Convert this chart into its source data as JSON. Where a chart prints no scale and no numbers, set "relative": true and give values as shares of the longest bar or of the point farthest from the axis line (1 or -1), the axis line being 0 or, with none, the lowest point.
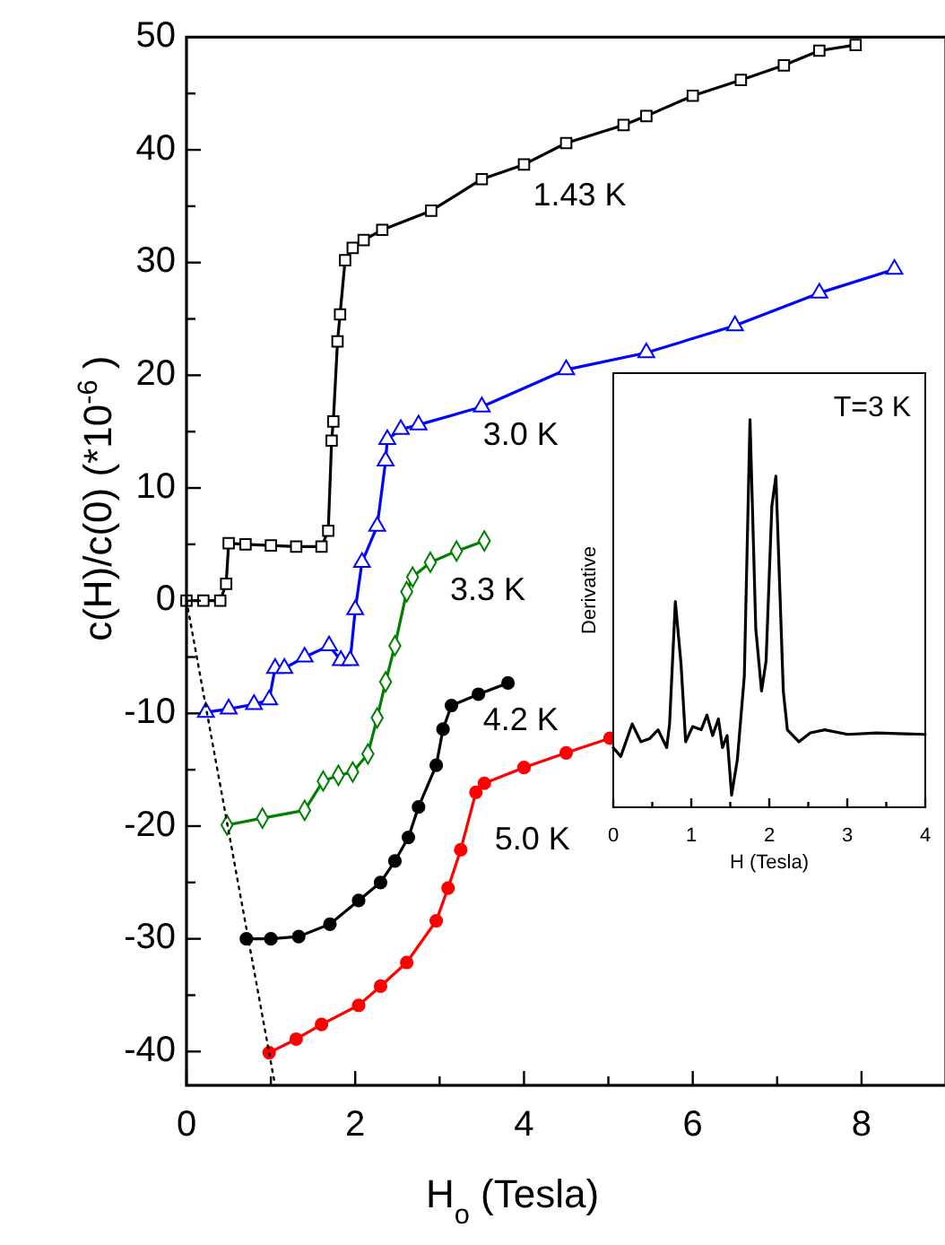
{
  "chart_data": [
    {
      "type": "line",
      "xlabel": "H$_{o}$ (Tesla)",
      "ylabel": "c(H)/c(0)  (*10$^{-6}$)",
      "xlim": [
        0,
        9
      ],
      "ylim": [
        -43,
        50
      ],
      "xticks": [
        0,
        {
          "value": 1,
          "label": null
        },
        2,
        {
          "value": 3,
          "label": null
        },
        4,
        {
          "value": 5,
          "label": null
        },
        6,
        {
          "value": 7,
          "label": null
        },
        8
      ],
      "yticks": [
        -40,
        {
          "value": -35,
          "label": null
        },
        -30,
        {
          "value": -25,
          "label": null
        },
        -20,
        {
          "value": -15,
          "label": null
        },
        -10,
        {
          "value": -5,
          "label": null
        },
        0,
        {
          "value": 5,
          "label": null
        },
        10,
        {
          "value": 15,
          "label": null
        },
        20,
        {
          "value": 25,
          "label": null
        },
        30,
        {
          "value": 35,
          "label": null
        },
        40,
        {
          "value": 45,
          "label": null
        },
        50
      ],
      "series": [
        {
          "name": "1.43 K",
          "color": "#000000",
          "marker": "square",
          "x": [
            0,
            0.2,
            0.4,
            0.47,
            0.5,
            0.7,
            1.0,
            1.3,
            1.6,
            1.68,
            1.72,
            1.74,
            1.79,
            1.82,
            1.88,
            1.97,
            2.1,
            2.32,
            2.9,
            3.5,
            4.0,
            4.5,
            5.18,
            5.45,
            6.0,
            6.57,
            7.08,
            7.5,
            7.93
          ],
          "values": [
            0,
            0,
            0,
            1.5,
            5.1,
            5.0,
            4.9,
            4.8,
            4.8,
            6.2,
            14.2,
            15.9,
            23,
            25.4,
            30.2,
            31.3,
            32,
            32.9,
            34.6,
            37.4,
            38.7,
            40.6,
            42.2,
            43,
            44.8,
            46.2,
            47.5,
            48.8,
            49.3
          ]
        },
        {
          "name": "3.0 K",
          "color": "#0000ff",
          "marker": "triangle",
          "x": [
            0.23,
            0.5,
            0.8,
            0.98,
            1.05,
            1.16,
            1.4,
            1.69,
            1.83,
            1.94,
            2.0,
            2.08,
            2.26,
            2.36,
            2.38,
            2.54,
            2.75,
            3.5,
            4.5,
            5.45,
            6.5,
            7.5,
            8.39
          ],
          "values": [
            -9.9,
            -9.6,
            -9.2,
            -8.8,
            -6.0,
            -6.0,
            -5.0,
            -4.0,
            -5.3,
            -5.3,
            -0.8,
            3.4,
            6.6,
            12.4,
            14.3,
            15.2,
            15.6,
            17.2,
            20.5,
            22.0,
            24.4,
            27.3,
            29.4
          ]
        },
        {
          "name": "3.3 K",
          "color": "#008000",
          "marker": "diamond",
          "x": [
            0.48,
            0.9,
            1.4,
            1.62,
            1.8,
            1.97,
            2.15,
            2.26,
            2.36,
            2.47,
            2.61,
            2.68,
            2.89,
            3.2,
            3.53
          ],
          "values": [
            -19.9,
            -19.3,
            -18.6,
            -16.0,
            -15.5,
            -15.2,
            -13.6,
            -10.4,
            -7.2,
            -4.0,
            0.8,
            2.1,
            3.4,
            4.4,
            5.3
          ]
        },
        {
          "name": "4.2 K",
          "color": "#000000",
          "marker": "circle",
          "x": [
            0.71,
            1.0,
            1.33,
            1.7,
            2.04,
            2.3,
            2.47,
            2.63,
            2.75,
            2.96,
            3.04,
            3.14,
            3.46,
            3.81
          ],
          "values": [
            -30,
            -30,
            -29.8,
            -28.7,
            -26.6,
            -25,
            -23.1,
            -21,
            -18.3,
            -14.6,
            -11.4,
            -9.3,
            -8.3,
            -7.3
          ]
        },
        {
          "name": "5.0 K",
          "color": "#ff0000",
          "marker": "circle",
          "x": [
            0.98,
            1.3,
            1.6,
            2.04,
            2.3,
            2.61,
            2.96,
            3.1,
            3.25,
            3.43,
            3.53,
            4.0,
            4.5,
            5.02
          ],
          "values": [
            -40.1,
            -38.9,
            -37.6,
            -35.9,
            -34.2,
            -32.1,
            -28.4,
            -25.5,
            -22.1,
            -17.0,
            -16.2,
            -14.8,
            -13.5,
            -12.2
          ]
        },
        {
          "color": "#000000",
          "marker": "none",
          "line_style": "dotted",
          "x": [
            0,
            1.05
          ],
          "values": [
            0,
            -43
          ]
        }
      ]
    },
    {
      "type": "line",
      "xlabel": "H (Tesla)",
      "ylabel": "Derivative",
      "annotations": [
        "T=3 K"
      ],
      "relative": true,
      "tick_labels": "x",
      "xlim": [
        0,
        4
      ],
      "xticks": [
        0,
        {
          "value": 0.5,
          "label": null
        },
        1,
        {
          "value": 1.5,
          "label": null
        },
        2,
        {
          "value": 2.5,
          "label": null
        },
        3,
        {
          "value": 3.5,
          "label": null
        },
        4
      ],
      "series": [
        {
          "color": "#000000",
          "marker": "none",
          "x": [
            0,
            0.096,
            0.243,
            0.354,
            0.464,
            0.575,
            0.685,
            0.722,
            0.796,
            0.869,
            0.928,
            1.017,
            1.127,
            1.201,
            1.274,
            1.348,
            1.4,
            1.459,
            1.517,
            1.591,
            1.68,
            1.753,
            1.827,
            1.901,
            1.959,
            2.033,
            2.085,
            2.18,
            2.232,
            2.379,
            2.527,
            2.711,
            3.006,
            3.374,
            4.0
          ],
          "values": [
            0.154,
            0.131,
            0.215,
            0.169,
            0.177,
            0.2,
            0.154,
            0.215,
            0.531,
            0.369,
            0.169,
            0.208,
            0.2,
            0.238,
            0.185,
            0.228,
            0.154,
            0.185,
            0.031,
            0.123,
            0.338,
            1.0,
            0.461,
            0.3,
            0.377,
            0.777,
            0.854,
            0.3,
            0.2,
            0.169,
            0.192,
            0.2,
            0.188,
            0.192,
            0.188
          ]
        }
      ]
    }
  ]
}
